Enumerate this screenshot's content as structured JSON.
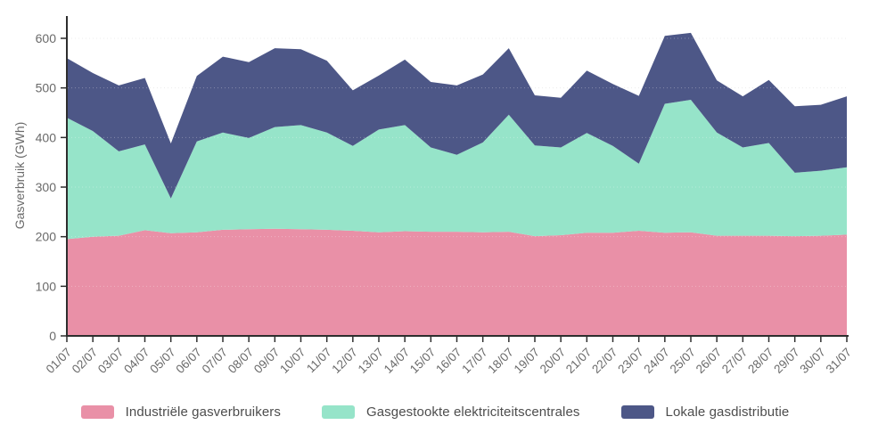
{
  "page": {
    "background": "#ffffff"
  },
  "chart_data": {
    "type": "area",
    "stacked": true,
    "title": "",
    "xlabel": "",
    "ylabel": "Gasverbruik (GWh)",
    "x": [
      "01/07",
      "02/07",
      "03/07",
      "04/07",
      "05/07",
      "06/07",
      "07/07",
      "08/07",
      "09/07",
      "10/07",
      "11/07",
      "12/07",
      "13/07",
      "14/07",
      "15/07",
      "16/07",
      "17/07",
      "18/07",
      "19/07",
      "20/07",
      "21/07",
      "22/07",
      "23/07",
      "24/07",
      "25/07",
      "26/07",
      "27/07",
      "28/07",
      "29/07",
      "30/07",
      "31/07"
    ],
    "series": [
      {
        "name": "Industriële gasverbruikers",
        "color": "#E990A7",
        "values": [
          195,
          200,
          202,
          213,
          207,
          209,
          214,
          215,
          216,
          215,
          214,
          212,
          209,
          211,
          210,
          210,
          209,
          210,
          201,
          203,
          208,
          208,
          212,
          208,
          209,
          202,
          202,
          202,
          201,
          202,
          204
        ]
      },
      {
        "name": "Gasgestookte elektriciteitscentrales",
        "color": "#96E4C9",
        "values": [
          245,
          213,
          170,
          173,
          70,
          183,
          196,
          184,
          205,
          210,
          196,
          171,
          207,
          214,
          170,
          155,
          181,
          236,
          183,
          177,
          201,
          175,
          135,
          260,
          267,
          208,
          178,
          187,
          128,
          131,
          136
        ]
      },
      {
        "name": "Lokale gasdistributie",
        "color": "#4D5787",
        "values": [
          120,
          117,
          133,
          134,
          111,
          132,
          153,
          153,
          159,
          153,
          145,
          112,
          109,
          132,
          132,
          140,
          137,
          134,
          101,
          100,
          126,
          125,
          137,
          137,
          135,
          105,
          103,
          127,
          134,
          133,
          143
        ]
      }
    ],
    "y_ticks": [
      0,
      100,
      200,
      300,
      400,
      500,
      600
    ],
    "ylim": [
      0,
      645
    ],
    "grid": "horizontal-dotted",
    "legend_position": "bottom"
  },
  "style": {
    "axis_line_color": "#2e2e2e",
    "tick_label_color": "#6a6a6a",
    "grid_color": "#e5e5e5",
    "grid_overlay_color": "rgba(255,255,255,0.30)"
  }
}
